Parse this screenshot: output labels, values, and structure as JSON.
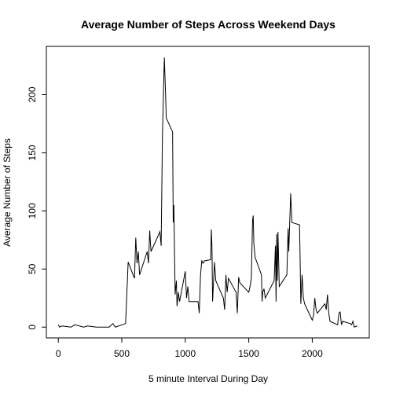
{
  "chart_data": {
    "type": "line",
    "title": "Average Number of Steps Across Weekend Days",
    "x_label": "5 minute Interval During Day",
    "y_label": "Average Number of Steps",
    "x": [
      0,
      10,
      30,
      100,
      130,
      200,
      230,
      300,
      400,
      430,
      450,
      500,
      530,
      550,
      600,
      610,
      620,
      630,
      640,
      700,
      710,
      720,
      730,
      800,
      810,
      820,
      835,
      845,
      850,
      900,
      905,
      910,
      920,
      930,
      935,
      945,
      955,
      1000,
      1010,
      1020,
      1030,
      1100,
      1110,
      1120,
      1130,
      1140,
      1150,
      1200,
      1205,
      1210,
      1215,
      1230,
      1240,
      1300,
      1310,
      1320,
      1330,
      1340,
      1400,
      1410,
      1420,
      1430,
      1500,
      1510,
      1520,
      1530,
      1535,
      1540,
      1550,
      1600,
      1605,
      1610,
      1620,
      1630,
      1700,
      1710,
      1715,
      1720,
      1725,
      1730,
      1740,
      1800,
      1810,
      1815,
      1830,
      1840,
      1900,
      1910,
      1920,
      1930,
      1940,
      2000,
      2010,
      2020,
      2030,
      2040,
      2100,
      2110,
      2120,
      2130,
      2140,
      2200,
      2210,
      2220,
      2230,
      2240,
      2300,
      2310,
      2320,
      2330,
      2355
    ],
    "series": [
      {
        "name": "steps",
        "color": "#000000",
        "values": [
          2,
          0,
          1,
          0,
          2,
          0,
          1,
          0,
          0,
          3,
          0,
          2,
          3,
          56,
          42,
          77,
          55,
          65,
          45,
          65,
          55,
          83,
          65,
          82,
          70,
          165,
          232,
          200,
          180,
          168,
          90,
          105,
          28,
          40,
          18,
          30,
          22,
          48,
          25,
          35,
          22,
          22,
          12,
          45,
          57,
          55,
          57,
          58,
          84,
          70,
          22,
          56,
          40,
          25,
          15,
          45,
          30,
          42,
          30,
          12,
          43,
          38,
          30,
          35,
          42,
          92,
          96,
          72,
          60,
          45,
          22,
          30,
          33,
          25,
          40,
          70,
          22,
          80,
          40,
          82,
          35,
          45,
          85,
          65,
          115,
          90,
          88,
          20,
          45,
          25,
          20,
          6,
          10,
          25,
          15,
          12,
          20,
          15,
          28,
          12,
          5,
          2,
          12,
          13,
          2,
          5,
          3,
          2,
          5,
          0,
          1
        ]
      }
    ],
    "xlim": [
      -94.2,
      2449.2
    ],
    "ylim": [
      -9.3,
      241.6
    ],
    "xticks": [
      0,
      500,
      1000,
      1500,
      2000
    ],
    "yticks": [
      0,
      50,
      100,
      150,
      200
    ]
  }
}
